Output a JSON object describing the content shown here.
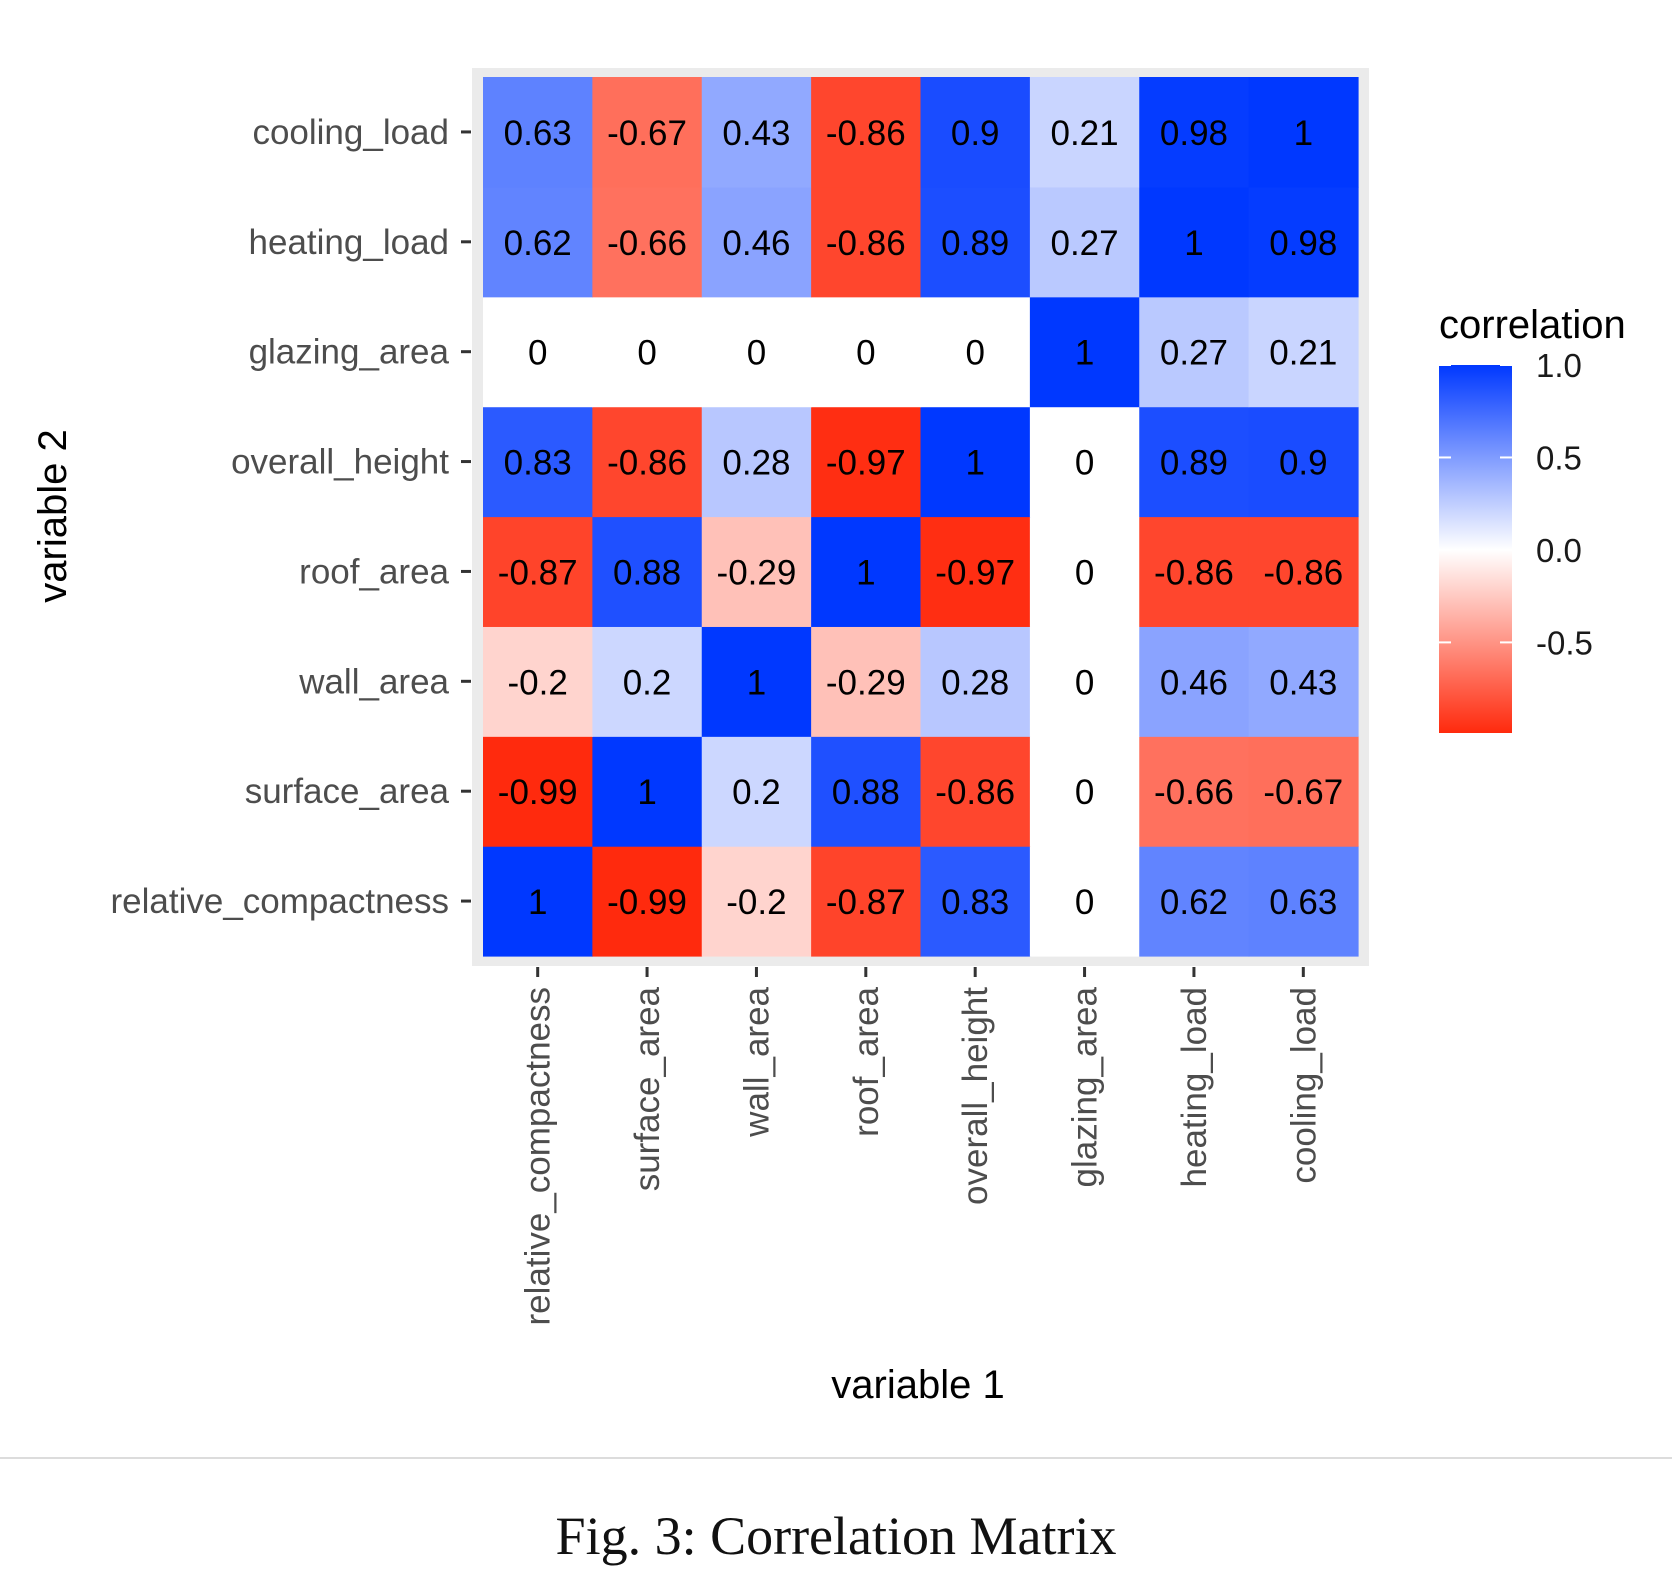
{
  "chart_data": {
    "type": "heatmap",
    "x_categories": [
      "relative_compactness",
      "surface_area",
      "wall_area",
      "roof_area",
      "overall_height",
      "glazing_area",
      "heating_load",
      "cooling_load"
    ],
    "y_categories": [
      "relative_compactness",
      "surface_area",
      "wall_area",
      "roof_area",
      "overall_height",
      "glazing_area",
      "heating_load",
      "cooling_load"
    ],
    "values": [
      [
        1,
        -0.99,
        -0.2,
        -0.87,
        0.83,
        0,
        0.62,
        0.63
      ],
      [
        -0.99,
        1,
        0.2,
        0.88,
        -0.86,
        0,
        -0.66,
        -0.67
      ],
      [
        -0.2,
        0.2,
        1,
        -0.29,
        0.28,
        0,
        0.46,
        0.43
      ],
      [
        -0.87,
        0.88,
        -0.29,
        1,
        -0.97,
        0,
        -0.86,
        -0.86
      ],
      [
        0.83,
        -0.86,
        0.28,
        -0.97,
        1,
        0,
        0.89,
        0.9
      ],
      [
        0,
        0,
        0,
        0,
        0,
        1,
        0.27,
        0.21
      ],
      [
        0.62,
        -0.66,
        0.46,
        -0.86,
        0.89,
        0.27,
        1,
        0.98
      ],
      [
        0.63,
        -0.67,
        0.43,
        -0.86,
        0.9,
        0.21,
        0.98,
        1
      ]
    ],
    "value_labels": [
      [
        "1",
        "-0.99",
        "-0.2",
        "-0.87",
        "0.83",
        "0",
        "0.62",
        "0.63"
      ],
      [
        "-0.99",
        "1",
        "0.2",
        "0.88",
        "-0.86",
        "0",
        "-0.66",
        "-0.67"
      ],
      [
        "-0.2",
        "0.2",
        "1",
        "-0.29",
        "0.28",
        "0",
        "0.46",
        "0.43"
      ],
      [
        "-0.87",
        "0.88",
        "-0.29",
        "1",
        "-0.97",
        "0",
        "-0.86",
        "-0.86"
      ],
      [
        "0.83",
        "-0.86",
        "0.28",
        "-0.97",
        "1",
        "0",
        "0.89",
        "0.9"
      ],
      [
        "0",
        "0",
        "0",
        "0",
        "0",
        "1",
        "0.27",
        "0.21"
      ],
      [
        "0.62",
        "-0.66",
        "0.46",
        "-0.86",
        "0.89",
        "0.27",
        "1",
        "0.98"
      ],
      [
        "0.63",
        "-0.67",
        "0.43",
        "-0.86",
        "0.9",
        "0.21",
        "0.98",
        "1"
      ]
    ],
    "xlabel": "variable 1",
    "ylabel": "variable 2",
    "legend": {
      "title": "correlation",
      "ticks": [
        1.0,
        0.5,
        0.0,
        -0.5
      ],
      "tick_labels": [
        "1.0",
        "0.5",
        "0.0",
        "-0.5"
      ],
      "range": [
        -0.99,
        1.0
      ],
      "placement": "right"
    },
    "colors": {
      "low": "#ff2a0d",
      "mid": "#ffffff",
      "high": "#0038ff",
      "panel_background": "#ebebeb",
      "text": "#000000",
      "axis_text": "#4d4d4d"
    }
  },
  "caption": "Fig. 3: Correlation Matrix"
}
